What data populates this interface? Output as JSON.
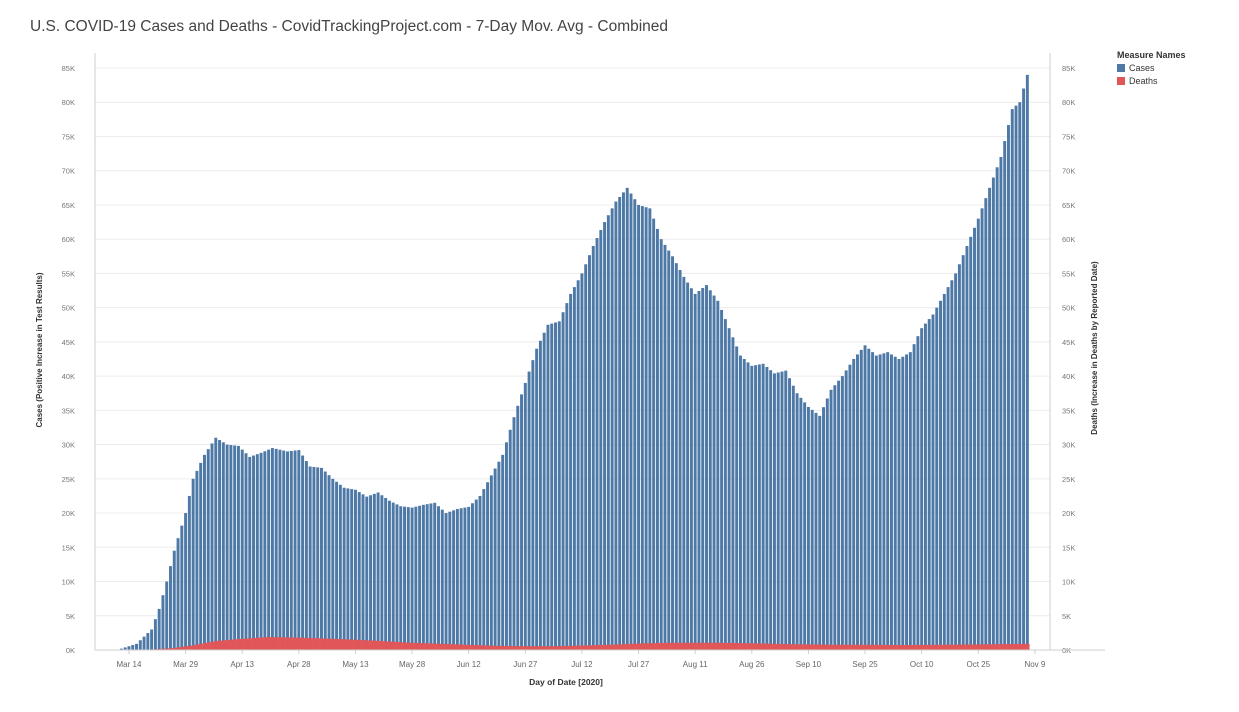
{
  "chart_data": {
    "type": "bar",
    "title": "U.S. COVID-19 Cases and Deaths - CovidTrackingProject.com - 7-Day Mov. Avg - Combined",
    "xlabel": "Day of Date [2020]",
    "ylabel_left": "Cases (Positive Increase in Test Results)",
    "ylabel_right": "Deaths (Increase in Deaths by Reported Date)",
    "ylim": [
      0,
      85000
    ],
    "y_ticks": [
      "0K",
      "5K",
      "10K",
      "15K",
      "20K",
      "25K",
      "30K",
      "35K",
      "40K",
      "45K",
      "50K",
      "55K",
      "60K",
      "65K",
      "70K",
      "75K",
      "80K",
      "85K"
    ],
    "y_tick_values": [
      0,
      5000,
      10000,
      15000,
      20000,
      25000,
      30000,
      35000,
      40000,
      45000,
      50000,
      55000,
      60000,
      65000,
      70000,
      75000,
      80000,
      85000
    ],
    "x_range_days": [
      "2020-03-05",
      "2020-11-13"
    ],
    "x_ticks": [
      {
        "label": "Mar 14",
        "date": "2020-03-14"
      },
      {
        "label": "Mar 29",
        "date": "2020-03-29"
      },
      {
        "label": "Apr 13",
        "date": "2020-04-13"
      },
      {
        "label": "Apr 28",
        "date": "2020-04-28"
      },
      {
        "label": "May 13",
        "date": "2020-05-13"
      },
      {
        "label": "May 28",
        "date": "2020-05-28"
      },
      {
        "label": "Jun 12",
        "date": "2020-06-12"
      },
      {
        "label": "Jun 27",
        "date": "2020-06-27"
      },
      {
        "label": "Jul 12",
        "date": "2020-07-12"
      },
      {
        "label": "Jul 27",
        "date": "2020-07-27"
      },
      {
        "label": "Aug 11",
        "date": "2020-08-11"
      },
      {
        "label": "Aug 26",
        "date": "2020-08-26"
      },
      {
        "label": "Sep 10",
        "date": "2020-09-10"
      },
      {
        "label": "Sep 25",
        "date": "2020-09-25"
      },
      {
        "label": "Oct 10",
        "date": "2020-10-10"
      },
      {
        "label": "Oct 25",
        "date": "2020-10-25"
      },
      {
        "label": "Nov 9",
        "date": "2020-11-09"
      }
    ],
    "legend": {
      "title": "Measure Names",
      "placement": "top-right",
      "items": [
        {
          "name": "Cases",
          "color": "#4e79a7"
        },
        {
          "name": "Deaths",
          "color": "#e15759"
        }
      ]
    },
    "series": [
      {
        "name": "Cases",
        "color": "#4e79a7",
        "points": [
          [
            "2020-03-12",
            200
          ],
          [
            "2020-03-16",
            900
          ],
          [
            "2020-03-20",
            3000
          ],
          [
            "2020-03-22",
            6000
          ],
          [
            "2020-03-24",
            10000
          ],
          [
            "2020-03-26",
            14500
          ],
          [
            "2020-03-29",
            20000
          ],
          [
            "2020-03-31",
            25000
          ],
          [
            "2020-04-03",
            28500
          ],
          [
            "2020-04-06",
            31000
          ],
          [
            "2020-04-09",
            30000
          ],
          [
            "2020-04-12",
            29800
          ],
          [
            "2020-04-15",
            28200
          ],
          [
            "2020-04-18",
            28800
          ],
          [
            "2020-04-21",
            29500
          ],
          [
            "2020-04-25",
            29000
          ],
          [
            "2020-04-28",
            29200
          ],
          [
            "2020-05-01",
            26800
          ],
          [
            "2020-05-04",
            26600
          ],
          [
            "2020-05-07",
            25000
          ],
          [
            "2020-05-10",
            23700
          ],
          [
            "2020-05-13",
            23400
          ],
          [
            "2020-05-16",
            22400
          ],
          [
            "2020-05-19",
            23000
          ],
          [
            "2020-05-22",
            21800
          ],
          [
            "2020-05-25",
            21000
          ],
          [
            "2020-05-28",
            20800
          ],
          [
            "2020-05-31",
            21200
          ],
          [
            "2020-06-03",
            21500
          ],
          [
            "2020-06-06",
            20000
          ],
          [
            "2020-06-09",
            20600
          ],
          [
            "2020-06-12",
            20900
          ],
          [
            "2020-06-15",
            22500
          ],
          [
            "2020-06-18",
            25500
          ],
          [
            "2020-06-21",
            28500
          ],
          [
            "2020-06-24",
            34000
          ],
          [
            "2020-06-27",
            39000
          ],
          [
            "2020-06-30",
            44000
          ],
          [
            "2020-07-03",
            47500
          ],
          [
            "2020-07-06",
            48000
          ],
          [
            "2020-07-09",
            52000
          ],
          [
            "2020-07-12",
            55000
          ],
          [
            "2020-07-15",
            59000
          ],
          [
            "2020-07-18",
            62500
          ],
          [
            "2020-07-21",
            65500
          ],
          [
            "2020-07-24",
            67500
          ],
          [
            "2020-07-27",
            65000
          ],
          [
            "2020-07-30",
            64500
          ],
          [
            "2020-08-02",
            60000
          ],
          [
            "2020-08-05",
            57500
          ],
          [
            "2020-08-08",
            54500
          ],
          [
            "2020-08-11",
            52000
          ],
          [
            "2020-08-14",
            53300
          ],
          [
            "2020-08-17",
            51000
          ],
          [
            "2020-08-20",
            47000
          ],
          [
            "2020-08-23",
            43000
          ],
          [
            "2020-08-26",
            41500
          ],
          [
            "2020-08-29",
            41800
          ],
          [
            "2020-09-01",
            40400
          ],
          [
            "2020-09-04",
            40800
          ],
          [
            "2020-09-07",
            37500
          ],
          [
            "2020-09-10",
            35500
          ],
          [
            "2020-09-13",
            34200
          ],
          [
            "2020-09-16",
            38000
          ],
          [
            "2020-09-19",
            40000
          ],
          [
            "2020-09-22",
            42500
          ],
          [
            "2020-09-25",
            44500
          ],
          [
            "2020-09-28",
            43000
          ],
          [
            "2020-10-01",
            43500
          ],
          [
            "2020-10-04",
            42500
          ],
          [
            "2020-10-07",
            43500
          ],
          [
            "2020-10-10",
            47000
          ],
          [
            "2020-10-13",
            49000
          ],
          [
            "2020-10-16",
            52000
          ],
          [
            "2020-10-19",
            55000
          ],
          [
            "2020-10-22",
            59000
          ],
          [
            "2020-10-25",
            63000
          ],
          [
            "2020-10-28",
            67500
          ],
          [
            "2020-10-31",
            72000
          ],
          [
            "2020-11-03",
            79000
          ],
          [
            "2020-11-05",
            80000
          ],
          [
            "2020-11-07",
            84000
          ]
        ]
      },
      {
        "name": "Deaths",
        "color": "#e15759",
        "points": [
          [
            "2020-03-12",
            0
          ],
          [
            "2020-03-20",
            80
          ],
          [
            "2020-03-26",
            300
          ],
          [
            "2020-03-31",
            700
          ],
          [
            "2020-04-06",
            1300
          ],
          [
            "2020-04-12",
            1600
          ],
          [
            "2020-04-20",
            1900
          ],
          [
            "2020-04-28",
            1800
          ],
          [
            "2020-05-06",
            1650
          ],
          [
            "2020-05-13",
            1500
          ],
          [
            "2020-05-20",
            1300
          ],
          [
            "2020-05-28",
            1050
          ],
          [
            "2020-06-05",
            900
          ],
          [
            "2020-06-12",
            750
          ],
          [
            "2020-06-20",
            600
          ],
          [
            "2020-06-27",
            550
          ],
          [
            "2020-07-04",
            550
          ],
          [
            "2020-07-12",
            650
          ],
          [
            "2020-07-20",
            780
          ],
          [
            "2020-07-27",
            950
          ],
          [
            "2020-08-04",
            1050
          ],
          [
            "2020-08-11",
            1050
          ],
          [
            "2020-08-18",
            1050
          ],
          [
            "2020-08-26",
            980
          ],
          [
            "2020-09-05",
            850
          ],
          [
            "2020-09-15",
            780
          ],
          [
            "2020-09-25",
            760
          ],
          [
            "2020-10-05",
            720
          ],
          [
            "2020-10-15",
            760
          ],
          [
            "2020-10-25",
            820
          ],
          [
            "2020-11-03",
            880
          ],
          [
            "2020-11-07",
            900
          ]
        ]
      }
    ]
  }
}
